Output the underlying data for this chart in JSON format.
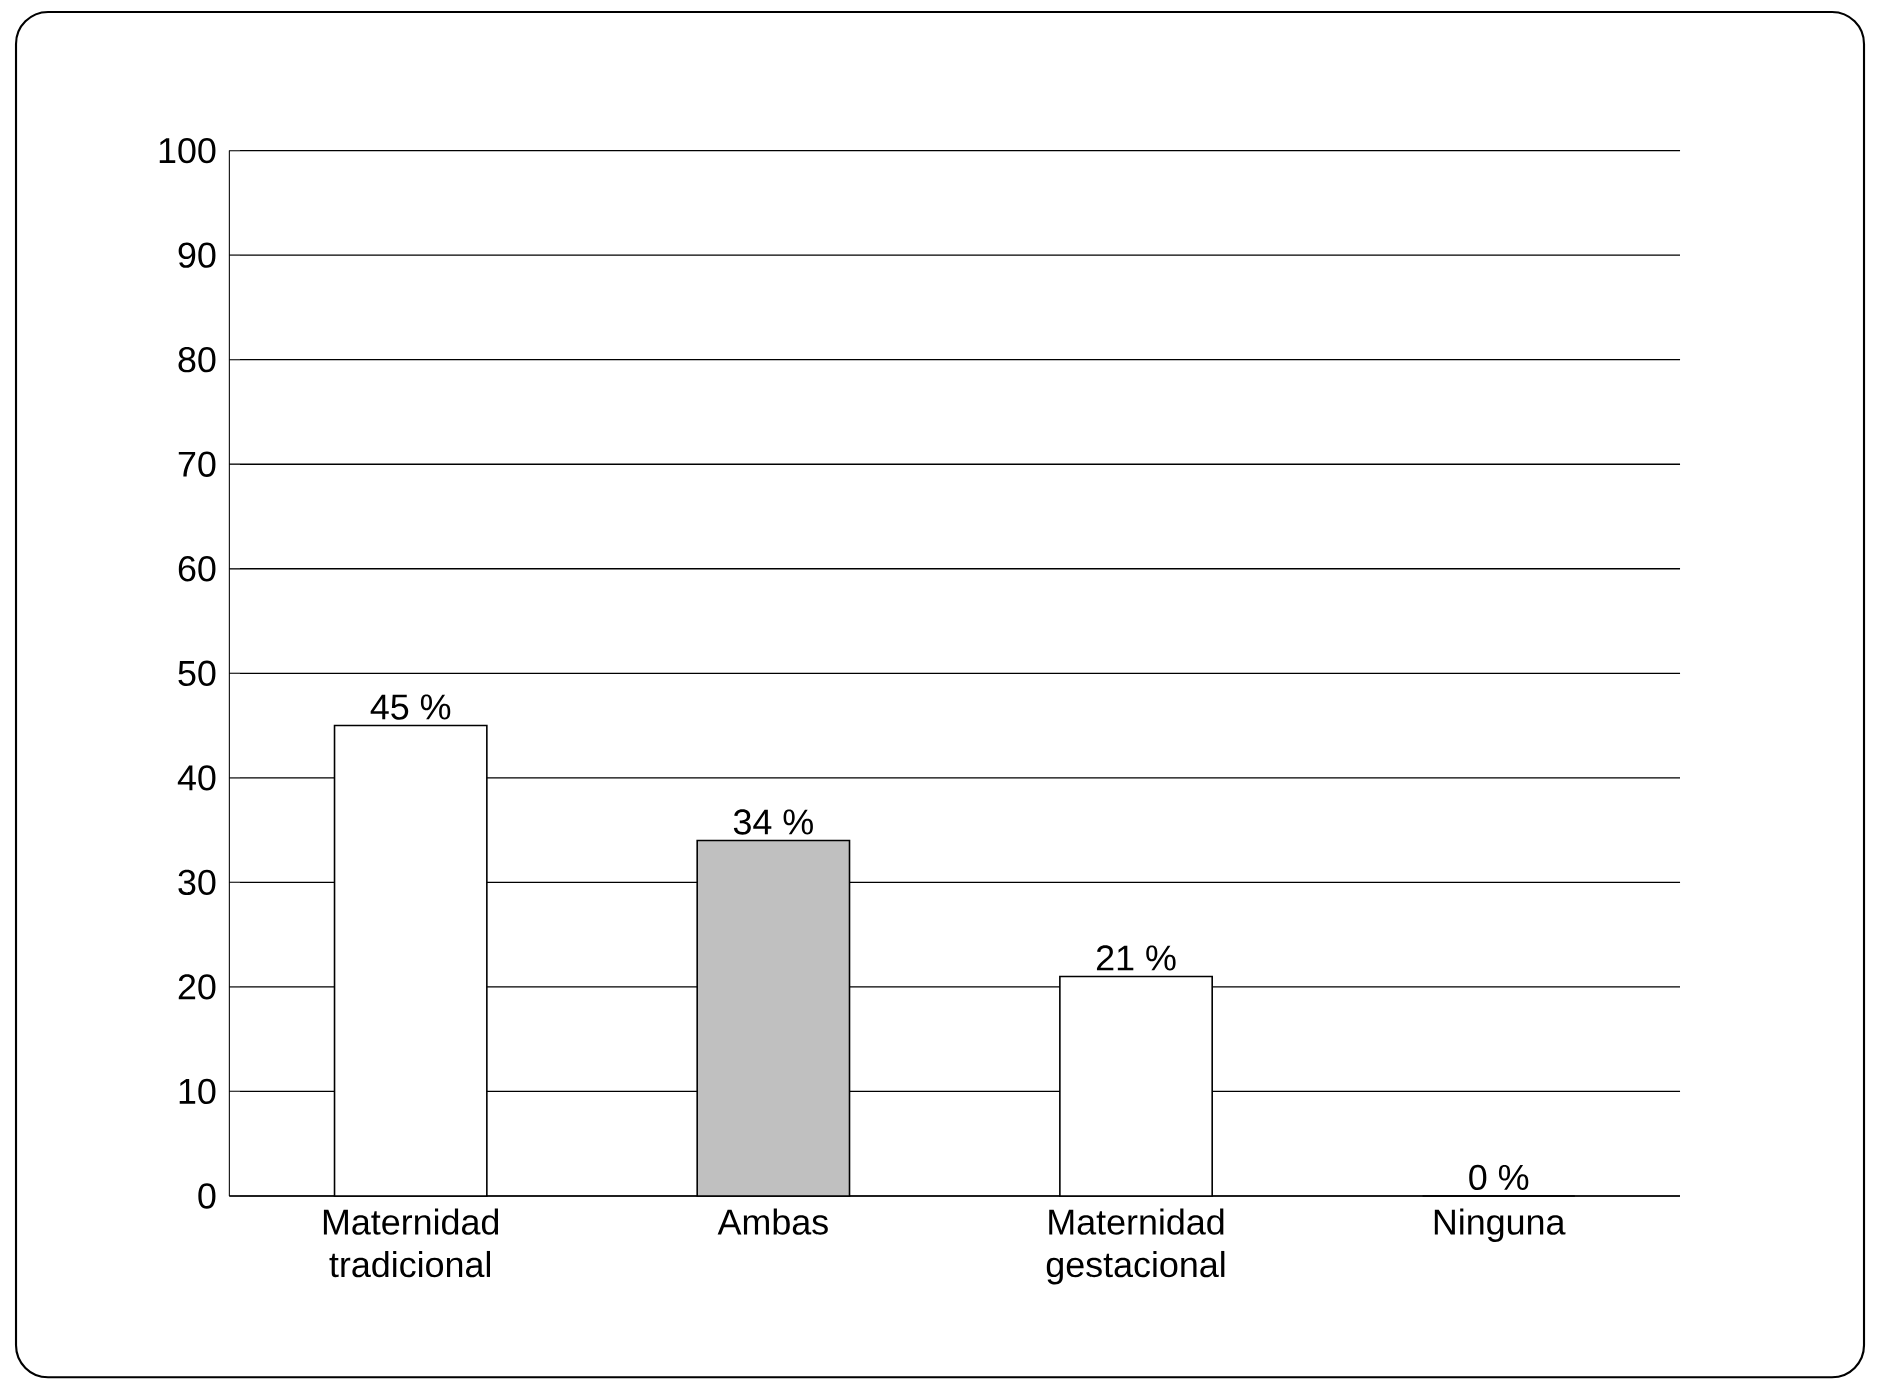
{
  "chart_data": {
    "type": "bar",
    "categories": [
      "Maternidad tradicional",
      "Ambas",
      "Maternidad gestacional",
      "Ninguna"
    ],
    "values": [
      45,
      34,
      21,
      0
    ],
    "colors": [
      "#ffffff",
      "#c0c0c0",
      "#ffffff",
      "#ffffff"
    ],
    "value_labels": [
      "45 %",
      "34 %",
      "21 %",
      "0 %"
    ],
    "ylim": [
      0,
      100
    ],
    "yticks": [
      0,
      10,
      20,
      30,
      40,
      50,
      60,
      70,
      80,
      90,
      100
    ],
    "grid": "y"
  }
}
